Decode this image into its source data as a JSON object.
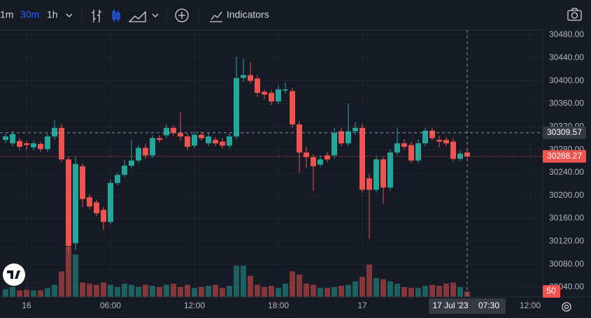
{
  "toolbar": {
    "intervals": [
      "1m",
      "30m",
      "1h"
    ],
    "indicators": "Indicators"
  },
  "chart_data": {
    "type": "candlestick",
    "candles": {
      "open": [
        30297,
        30291,
        30295,
        30291,
        30284,
        30290,
        30281,
        30303,
        30318,
        30263,
        30117,
        30251,
        30197,
        30188,
        30175,
        30154,
        30222,
        30236,
        30252,
        30261,
        30283,
        30270,
        30300,
        30305,
        30318,
        30309,
        30303,
        30287,
        30306,
        30291,
        30297,
        30294,
        30287,
        30303,
        30405,
        30410,
        30404,
        30381,
        30379,
        30364,
        30383,
        30382,
        30324,
        30275,
        30267,
        30254,
        30270,
        30270,
        30312,
        30291,
        30312,
        30318,
        30230,
        30210,
        30263,
        30214,
        30275,
        30291,
        30288,
        30261,
        30291,
        30313,
        30297,
        30297,
        30294,
        30264,
        30275
      ],
      "high": [
        30308,
        30312,
        30300,
        30296,
        30296,
        30294,
        30308,
        30332,
        30325,
        30268,
        30268,
        30256,
        30202,
        30193,
        30180,
        30228,
        30240,
        30262,
        30297,
        30288,
        30290,
        30305,
        30305,
        30324,
        30322,
        30345,
        30308,
        30312,
        30312,
        30310,
        30302,
        30300,
        30308,
        30442,
        30438,
        30433,
        30410,
        30385,
        30384,
        30392,
        30397,
        30388,
        30330,
        30285,
        30272,
        30270,
        30276,
        30318,
        30318,
        30360,
        30328,
        30325,
        30238,
        30270,
        30268,
        30280,
        30318,
        30298,
        30294,
        30298,
        30318,
        30318,
        30304,
        30302,
        30300,
        30278,
        30280
      ],
      "low": [
        30292,
        30286,
        30280,
        30280,
        30279,
        30276,
        30276,
        30298,
        30258,
        30100,
        30105,
        30180,
        30176,
        30164,
        30140,
        30150,
        30218,
        30232,
        30248,
        30256,
        30264,
        30265,
        30292,
        30300,
        30304,
        30296,
        30280,
        30282,
        30296,
        30286,
        30286,
        30282,
        30282,
        30298,
        30398,
        30395,
        30372,
        30368,
        30358,
        30360,
        30378,
        30318,
        30240,
        30248,
        30208,
        30250,
        30258,
        30264,
        30286,
        30286,
        30306,
        30205,
        30124,
        30205,
        30186,
        30208,
        30270,
        30280,
        30256,
        30256,
        30286,
        30296,
        30284,
        30286,
        30260,
        30260,
        30264
      ],
      "close": [
        30303,
        30307,
        30285,
        30288,
        30291,
        30281,
        30303,
        30318,
        30263,
        30112,
        30255,
        30194,
        30181,
        30169,
        30154,
        30222,
        30236,
        30252,
        30261,
        30283,
        30270,
        30300,
        30297,
        30318,
        30309,
        30303,
        30285,
        30306,
        30300,
        30303,
        30291,
        30287,
        30303,
        30405,
        30410,
        30400,
        30379,
        30376,
        30364,
        30385,
        30385,
        30324,
        30275,
        30267,
        30251,
        30263,
        30263,
        30309,
        30291,
        30312,
        30318,
        30210,
        30210,
        30263,
        30214,
        30275,
        30291,
        30285,
        30261,
        30291,
        30313,
        30300,
        30294,
        30291,
        30264,
        30273,
        30268
      ],
      "volume": [
        70,
        90,
        60,
        65,
        60,
        60,
        80,
        110,
        230,
        450,
        380,
        130,
        120,
        110,
        130,
        110,
        90,
        120,
        110,
        90,
        110,
        100,
        90,
        110,
        120,
        90,
        110,
        80,
        90,
        100,
        110,
        80,
        100,
        280,
        280,
        190,
        110,
        90,
        100,
        80,
        120,
        230,
        200,
        120,
        110,
        80,
        80,
        90,
        100,
        110,
        140,
        180,
        290,
        170,
        160,
        140,
        120,
        90,
        80,
        80,
        100,
        110,
        100,
        120,
        130,
        90,
        50
      ]
    },
    "up_color": "#26a69a",
    "down_color": "#ef5350",
    "ylim": [
      30023,
      30488.5
    ],
    "yticks": [
      {
        "value": 30480,
        "label": "30480.00"
      },
      {
        "value": 30440,
        "label": "30440.00"
      },
      {
        "value": 30400,
        "label": "30400.00"
      },
      {
        "value": 30360,
        "label": "30360.00"
      },
      {
        "value": 30320,
        "label": "30320.00"
      },
      {
        "value": 30280,
        "label": "30280.00"
      },
      {
        "value": 30240,
        "label": "30240.00"
      },
      {
        "value": 30200,
        "label": "30200.00"
      },
      {
        "value": 30160,
        "label": "30160.00"
      },
      {
        "value": 30120,
        "label": "30120.00"
      },
      {
        "value": 30080,
        "label": "30080.00"
      },
      {
        "value": 30040,
        "label": "30040.00"
      }
    ],
    "xlim": [
      -0.8,
      76.7
    ],
    "xticks": [
      {
        "value": 3,
        "label": "16"
      },
      {
        "value": 15,
        "label": "06:00"
      },
      {
        "value": 27,
        "label": "12:00"
      },
      {
        "value": 39,
        "label": "18:00"
      },
      {
        "value": 51,
        "label": "17"
      },
      {
        "value": 75,
        "label": "12:00"
      }
    ],
    "grid": true,
    "crosshair": {
      "price": 30309.57,
      "date": "17 Jul '23",
      "time": "07:30"
    },
    "last_price": 30268.27,
    "last_volume": 50
  }
}
